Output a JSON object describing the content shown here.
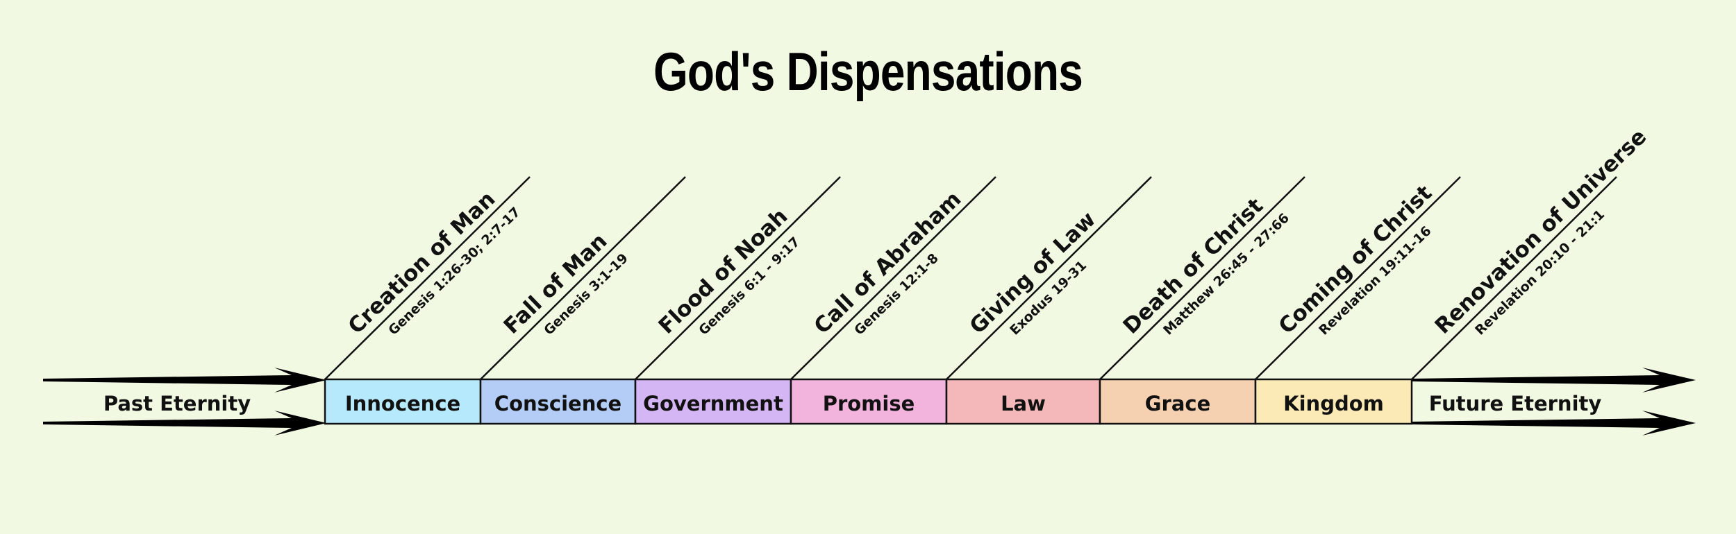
{
  "title": "God's Dispensations",
  "start_label": "Past Eternity",
  "end_label": "Future Eternity",
  "dispensations": [
    {
      "label": "Innocence",
      "color": "#b6e9fb"
    },
    {
      "label": "Conscience",
      "color": "#b3cdf6"
    },
    {
      "label": "Government",
      "color": "#d4b6f5"
    },
    {
      "label": "Promise",
      "color": "#f2b3dc"
    },
    {
      "label": "Law",
      "color": "#f5b8ba"
    },
    {
      "label": "Grace",
      "color": "#f5d1b2"
    },
    {
      "label": "Kingdom",
      "color": "#fbeab5"
    }
  ],
  "events": [
    {
      "title": "Creation of Man",
      "ref": "Genesis 1:26-30; 2:7-17"
    },
    {
      "title": "Fall of Man",
      "ref": "Genesis 3:1-19"
    },
    {
      "title": "Flood of Noah",
      "ref": "Genesis 6:1 - 9:17"
    },
    {
      "title": "Call of Abraham",
      "ref": "Genesis 12:1-8"
    },
    {
      "title": "Giving of Law",
      "ref": "Exodus 19-31"
    },
    {
      "title": "Death of Christ",
      "ref": "Matthew 26:45 - 27:66"
    },
    {
      "title": "Coming of Christ",
      "ref": "Revelation 19:11-16"
    },
    {
      "title": "Renovation of Universe",
      "ref": "Revelation 20:10 - 21:1"
    }
  ]
}
